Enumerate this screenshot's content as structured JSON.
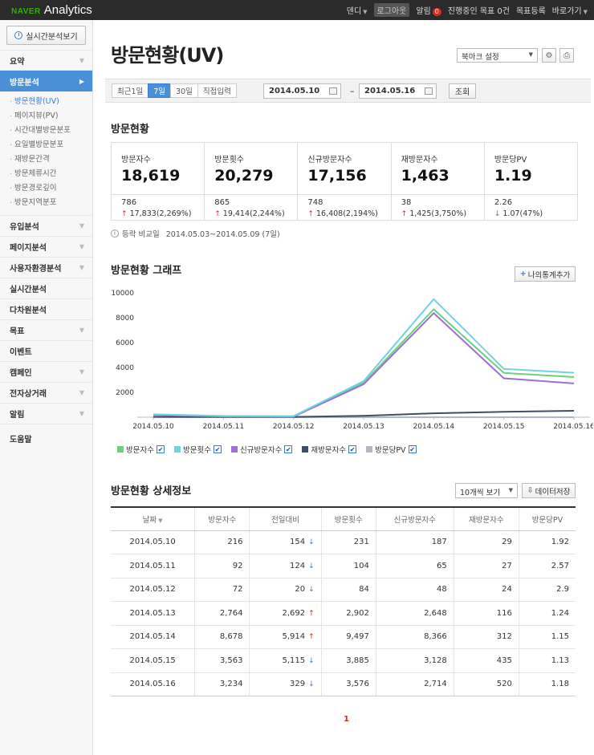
{
  "topbar": {
    "logo_brand": "NAVER",
    "logo_product": "Analytics",
    "user": "덴디",
    "logout": "로그아웃",
    "alerts_label": "알림",
    "alerts_count": "0",
    "goals_in_progress": "진행중인 목표 0건",
    "goal_register": "목표등록",
    "shortcut": "바로가기"
  },
  "sidebar": {
    "realtime_button": "실시간분석보기",
    "items_top": [
      {
        "label": "요약"
      }
    ],
    "active_item": "방문분석",
    "sub_items": [
      "방문현황(UV)",
      "페이지뷰(PV)",
      "시간대별방문분포",
      "요일별방문분포",
      "재방문간격",
      "방문체류시간",
      "방문경로깊이",
      "방문지역분포"
    ],
    "items_bottom": [
      {
        "label": "유입분석",
        "chevron": true
      },
      {
        "label": "페이지분석",
        "chevron": true
      },
      {
        "label": "사용자환경분석",
        "chevron": true
      },
      {
        "label": "실시간분석",
        "chevron": false
      },
      {
        "label": "다차원분석",
        "chevron": false
      },
      {
        "label": "목표",
        "chevron": true
      },
      {
        "label": "이벤트",
        "chevron": false
      },
      {
        "label": "캠페인",
        "chevron": true
      },
      {
        "label": "전자상거래",
        "chevron": true
      },
      {
        "label": "알림",
        "chevron": true
      },
      {
        "label": "도움말",
        "chevron": false
      }
    ]
  },
  "page": {
    "title": "방문현황(UV)",
    "bookmark_select": "북마크 설정",
    "range_tabs": [
      "최근1일",
      "7일",
      "30일",
      "직접입력"
    ],
    "active_range": "7일",
    "date_from": "2014.05.10",
    "date_dash": "–",
    "date_to": "2014.05.16",
    "query_button": "조회"
  },
  "summary": {
    "title": "방문현황",
    "cards": [
      {
        "label": "방문자수",
        "value": "18,619",
        "prev": "786",
        "delta": "17,833(2,269%)",
        "dir": "up"
      },
      {
        "label": "방문횟수",
        "value": "20,279",
        "prev": "865",
        "delta": "19,414(2,244%)",
        "dir": "up"
      },
      {
        "label": "신규방문자수",
        "value": "17,156",
        "prev": "748",
        "delta": "16,408(2,194%)",
        "dir": "up"
      },
      {
        "label": "재방문자수",
        "value": "1,463",
        "prev": "38",
        "delta": "1,425(3,750%)",
        "dir": "up"
      },
      {
        "label": "방문당PV",
        "value": "1.19",
        "prev": "2.26",
        "delta": "1.07(47%)",
        "dir": "down"
      }
    ],
    "compare_label": "등락 비교일",
    "compare_range": "2014.05.03~2014.05.09 (7일)"
  },
  "graph": {
    "title": "방문현황 그래프",
    "add_stat_button": "나의통계추가"
  },
  "chart_data": {
    "type": "line",
    "x": [
      "2014.05.10",
      "2014.05.11",
      "2014.05.12",
      "2014.05.13",
      "2014.05.14",
      "2014.05.15",
      "2014.05.16"
    ],
    "ylim": [
      0,
      10000
    ],
    "yticks": [
      2000,
      4000,
      6000,
      8000,
      10000
    ],
    "series": [
      {
        "name": "방문자수",
        "color": "#6fcf7f",
        "values": [
          216,
          92,
          72,
          2764,
          8678,
          3563,
          3234
        ]
      },
      {
        "name": "방문횟수",
        "color": "#6fd3e0",
        "values": [
          231,
          104,
          84,
          2902,
          9497,
          3885,
          3576
        ]
      },
      {
        "name": "신규방문자수",
        "color": "#9b6fd6",
        "values": [
          187,
          65,
          48,
          2648,
          8366,
          3128,
          2714
        ]
      },
      {
        "name": "재방문자수",
        "color": "#3f4f63",
        "values": [
          29,
          27,
          24,
          116,
          312,
          435,
          520
        ]
      },
      {
        "name": "방문당PV",
        "color": "#b0b6c2",
        "values": [
          1.92,
          2.57,
          2.9,
          1.24,
          1.15,
          1.13,
          1.18
        ]
      }
    ],
    "legend": "bottom-left",
    "grid": false
  },
  "detail": {
    "title": "방문현황 상세정보",
    "page_size": "10개씩 보기",
    "save_button": "데이터저장",
    "headers": [
      "날짜",
      "방문자수",
      "전일대비",
      "방문횟수",
      "신규방문자수",
      "재방문자수",
      "방문당PV"
    ],
    "rows": [
      {
        "date": "2014.05.10",
        "visitors": "216",
        "change": "154",
        "dir": "down",
        "visits": "231",
        "new": "187",
        "returning": "29",
        "pv": "1.92"
      },
      {
        "date": "2014.05.11",
        "visitors": "92",
        "change": "124",
        "dir": "down",
        "visits": "104",
        "new": "65",
        "returning": "27",
        "pv": "2.57"
      },
      {
        "date": "2014.05.12",
        "visitors": "72",
        "change": "20",
        "dir": "down",
        "visits": "84",
        "new": "48",
        "returning": "24",
        "pv": "2.9"
      },
      {
        "date": "2014.05.13",
        "visitors": "2,764",
        "change": "2,692",
        "dir": "up",
        "visits": "2,902",
        "new": "2,648",
        "returning": "116",
        "pv": "1.24"
      },
      {
        "date": "2014.05.14",
        "visitors": "8,678",
        "change": "5,914",
        "dir": "up",
        "visits": "9,497",
        "new": "8,366",
        "returning": "312",
        "pv": "1.15"
      },
      {
        "date": "2014.05.15",
        "visitors": "3,563",
        "change": "5,115",
        "dir": "down",
        "visits": "3,885",
        "new": "3,128",
        "returning": "435",
        "pv": "1.13"
      },
      {
        "date": "2014.05.16",
        "visitors": "3,234",
        "change": "329",
        "dir": "down",
        "visits": "3,576",
        "new": "2,714",
        "returning": "520",
        "pv": "1.18"
      }
    ],
    "current_page": "1"
  }
}
